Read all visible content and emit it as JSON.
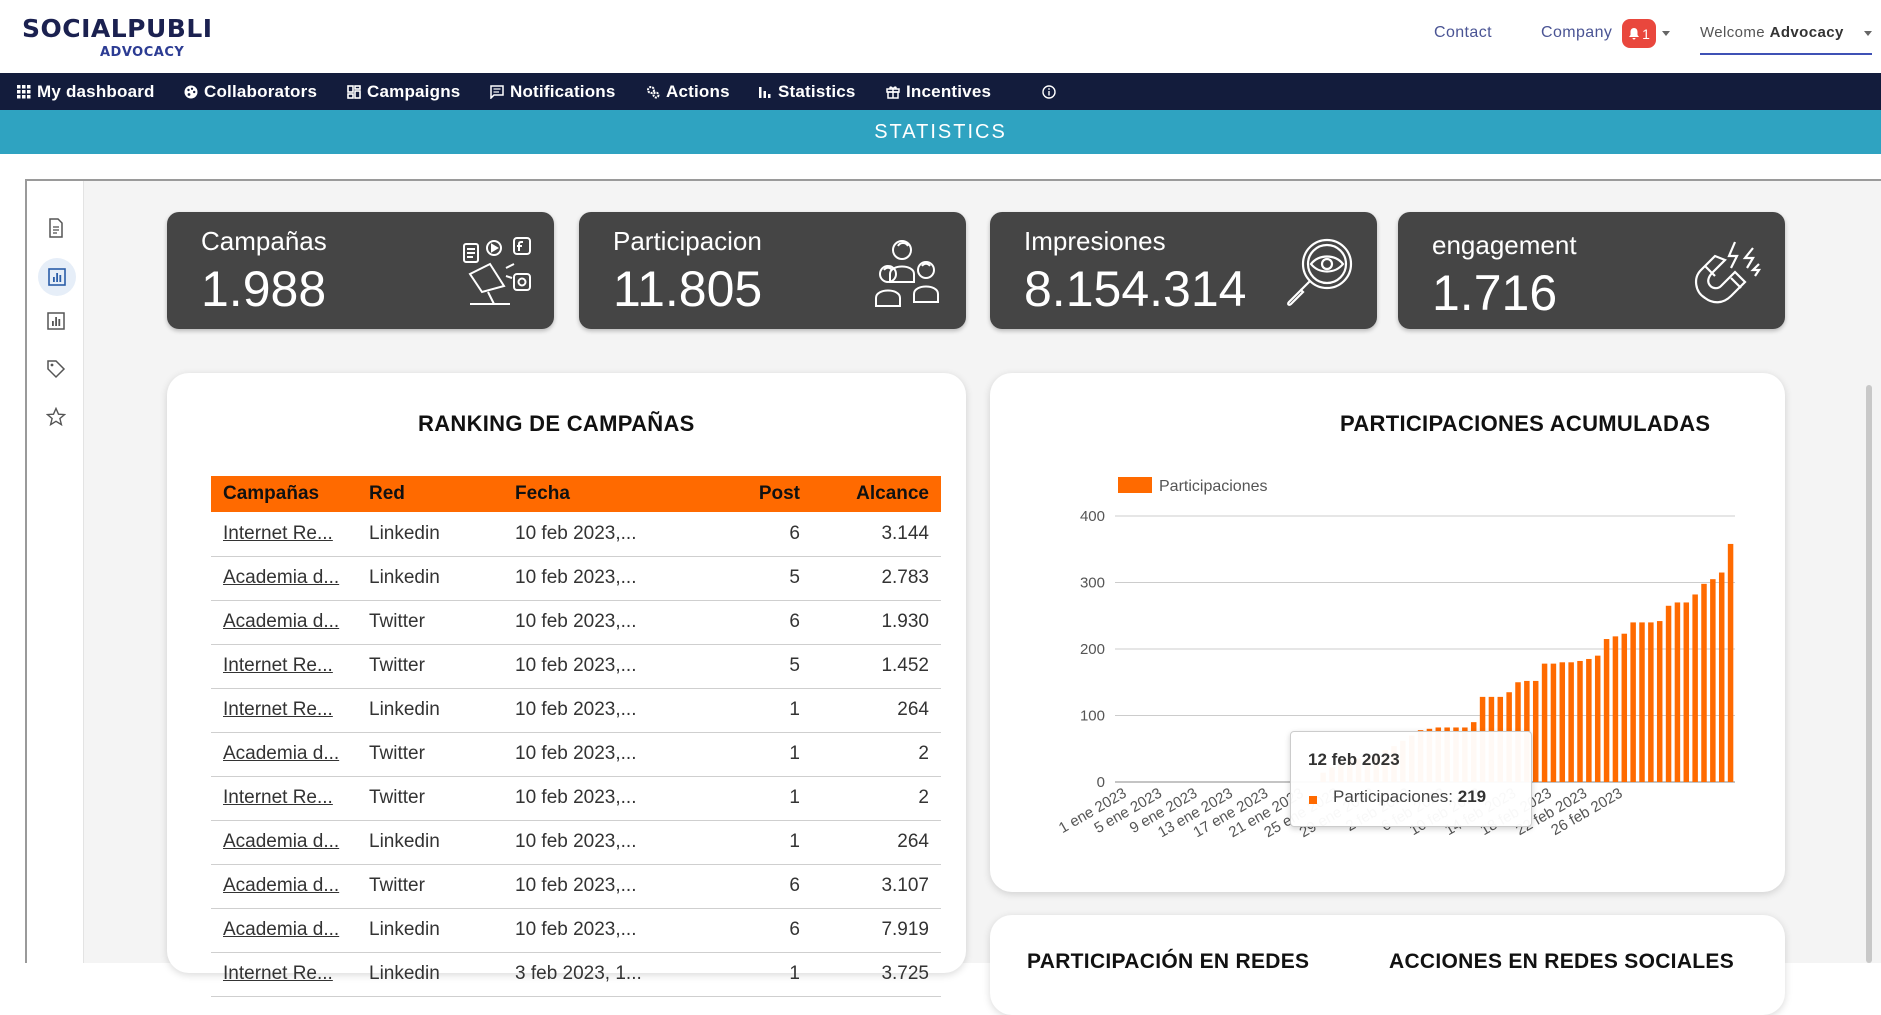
{
  "header": {
    "logo_top": "SOCIALPUBLI",
    "logo_bottom": "ADVOCACY",
    "contact": "Contact",
    "company": "Company",
    "notification_count": "1",
    "welcome_prefix": "Welcome",
    "welcome_user": "Advocacy"
  },
  "nav": {
    "items": [
      {
        "label": "My dashboard",
        "icon": "grid-icon"
      },
      {
        "label": "Collaborators",
        "icon": "palette-icon"
      },
      {
        "label": "Campaigns",
        "icon": "dashboard-icon"
      },
      {
        "label": "Notifications",
        "icon": "chat-icon"
      },
      {
        "label": "Actions",
        "icon": "gears-icon"
      },
      {
        "label": "Statistics",
        "icon": "bar-chart-icon"
      },
      {
        "label": "Incentives",
        "icon": "gift-icon"
      }
    ]
  },
  "page_title": "STATISTICS",
  "sidebar": {
    "icons": [
      "document-icon",
      "chart-icon",
      "report-icon",
      "tag-icon",
      "star-icon"
    ]
  },
  "kpis": [
    {
      "label": "Campañas",
      "value": "1.988",
      "icon": "campaign-icon"
    },
    {
      "label": "Participacion",
      "value": "11.805",
      "icon": "people-icon"
    },
    {
      "label": "Impresiones",
      "value": "8.154.314",
      "icon": "magnifier-eye-icon"
    },
    {
      "label": "engagement",
      "value": "1.716",
      "icon": "magnet-icon"
    }
  ],
  "ranking": {
    "title": "RANKING DE CAMPAÑAS",
    "columns": [
      "Campañas",
      "Red",
      "Fecha",
      "Post",
      "Alcance"
    ],
    "rows": [
      [
        "Internet Re...",
        "Linkedin",
        "10 feb 2023,...",
        "6",
        "3.144"
      ],
      [
        "Academia d...",
        "Linkedin",
        "10 feb 2023,...",
        "5",
        "2.783"
      ],
      [
        "Academia d...",
        "Twitter",
        "10 feb 2023,...",
        "6",
        "1.930"
      ],
      [
        "Internet Re...",
        "Twitter",
        "10 feb 2023,...",
        "5",
        "1.452"
      ],
      [
        "Internet Re...",
        "Linkedin",
        "10 feb 2023,...",
        "1",
        "264"
      ],
      [
        "Academia d...",
        "Twitter",
        "10 feb 2023,...",
        "1",
        "2"
      ],
      [
        "Internet Re...",
        "Twitter",
        "10 feb 2023,...",
        "1",
        "2"
      ],
      [
        "Academia d...",
        "Linkedin",
        "10 feb 2023,...",
        "1",
        "264"
      ],
      [
        "Academia d...",
        "Twitter",
        "10 feb 2023,...",
        "6",
        "3.107"
      ],
      [
        "Academia d...",
        "Linkedin",
        "10 feb 2023,...",
        "6",
        "7.919"
      ],
      [
        "Internet Re...",
        "Linkedin",
        "3 feb 2023, 1...",
        "1",
        "3.725"
      ]
    ]
  },
  "participaciones": {
    "title": "PARTICIPACIONES ACUMULADAS",
    "tooltip_date": "12 feb 2023",
    "tooltip_label": "Participaciones:",
    "tooltip_value": "219"
  },
  "chart_data": {
    "type": "bar",
    "title": "PARTICIPACIONES ACUMULADAS",
    "legend": "top-left",
    "series": [
      {
        "name": "Participaciones",
        "color": "#ff6a00",
        "values": [
          0,
          0,
          0,
          0,
          0,
          0,
          0,
          0,
          0,
          0,
          0,
          0,
          0,
          0,
          0,
          0,
          0,
          0,
          0,
          0,
          0,
          0,
          0,
          14,
          22,
          30,
          33,
          35,
          37,
          42,
          48,
          54,
          62,
          70,
          78,
          80,
          82,
          82,
          82,
          82,
          90,
          128,
          128,
          128,
          135,
          150,
          152,
          152,
          178,
          178,
          180,
          180,
          182,
          185,
          190,
          215,
          219,
          223,
          240,
          240,
          240,
          242,
          265,
          270,
          270,
          282,
          298,
          305,
          315,
          358
        ]
      }
    ],
    "x_tick_labels": [
      "1 ene 2023",
      "5 ene 2023",
      "9 ene 2023",
      "13 ene 2023",
      "17 ene 2023",
      "21 ene 2023",
      "25 ene 2023",
      "29 ene 2023",
      "2 feb 2023",
      "6 feb 2023",
      "10 feb 2023",
      "14 feb 2023",
      "18 feb 2023",
      "22 feb 2023",
      "26 feb 2023"
    ],
    "y_ticks": [
      0,
      100,
      200,
      300,
      400
    ],
    "ylim": [
      0,
      400
    ],
    "grid": true
  },
  "bottom_titles": {
    "left": "PARTICIPACIÓN EN REDES",
    "right": "ACCIONES EN REDES SOCIALES"
  }
}
